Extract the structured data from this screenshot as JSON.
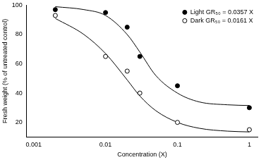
{
  "chart_data": {
    "type": "scatter",
    "x_label": "Concentration (X)",
    "y_label": "Fresh weight (% of untreated control)",
    "log": "x",
    "grid": false,
    "legend": "upper right",
    "xlim": [
      0.0008,
      1.3
    ],
    "xticks": [
      0.001,
      0.01,
      0.1,
      1
    ],
    "ylim": [
      10,
      100
    ],
    "yticks": [
      20,
      40,
      60,
      80,
      100
    ],
    "series": [
      {
        "name": "Light GR₅₀ = 0.0357 X",
        "type": "scatter",
        "marker": "circle",
        "color": "#000000",
        "x": [
          0.002,
          0.01,
          0.02,
          0.03,
          0.1,
          1
        ],
        "values": [
          97,
          95,
          85,
          65,
          45,
          30
        ]
      },
      {
        "name": "Dark GR₅₀ = 0.0161 X",
        "type": "scatter",
        "marker": "open_circle",
        "color": "#000000",
        "x": [
          0.002,
          0.01,
          0.02,
          0.03,
          0.1,
          1
        ],
        "values": [
          93,
          65,
          55,
          40,
          20,
          15
        ]
      },
      {
        "type": "line",
        "marker": "none",
        "line_style": "solid",
        "color": "#000000",
        "x": [
          0.002,
          0.005,
          0.01,
          0.02,
          0.03,
          0.05,
          0.1,
          0.2,
          0.5,
          1
        ],
        "values": [
          99,
          97,
          93,
          80,
          68,
          52,
          40,
          34,
          32,
          31.5
        ]
      },
      {
        "type": "line",
        "marker": "none",
        "line_style": "solid",
        "color": "#000000",
        "x": [
          0.002,
          0.005,
          0.01,
          0.02,
          0.03,
          0.05,
          0.1,
          0.2,
          0.5,
          1
        ],
        "values": [
          91,
          80,
          67,
          49,
          38,
          28,
          20,
          16,
          14,
          13.5
        ]
      }
    ]
  }
}
